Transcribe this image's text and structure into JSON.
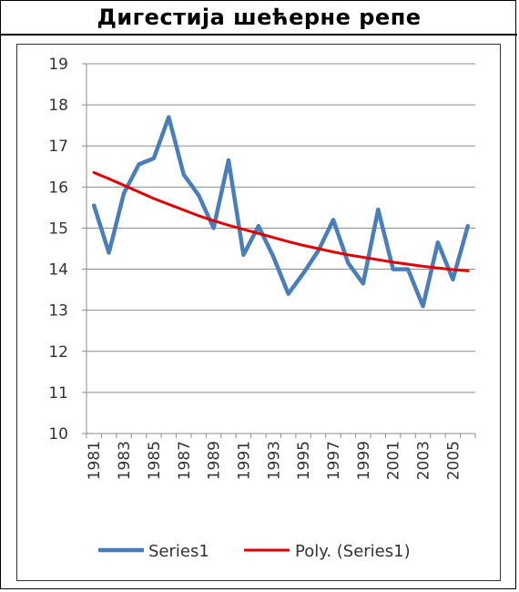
{
  "title": "Дигестија шећерне репе",
  "chart_data": {
    "type": "line",
    "ylim": [
      10,
      19
    ],
    "yticks": [
      10,
      11,
      12,
      13,
      14,
      15,
      16,
      17,
      18,
      19
    ],
    "x": [
      1981,
      1982,
      1983,
      1984,
      1985,
      1986,
      1987,
      1988,
      1989,
      1990,
      1991,
      1992,
      1993,
      1994,
      1995,
      1996,
      1997,
      1998,
      1999,
      2000,
      2001,
      2002,
      2003,
      2004,
      2005,
      2006
    ],
    "xtick_labels": [
      "1981",
      "1983",
      "1985",
      "1987",
      "1989",
      "1991",
      "1993",
      "1995",
      "1997",
      "1999",
      "2001",
      "2003",
      "2005"
    ],
    "grid": true,
    "legend_position": "bottom",
    "series": [
      {
        "name": "Series1",
        "color": "#4a7ebb",
        "values": [
          15.55,
          14.4,
          15.85,
          16.55,
          16.7,
          17.7,
          16.3,
          15.8,
          15.0,
          16.65,
          14.35,
          15.05,
          14.3,
          13.4,
          13.9,
          14.45,
          15.2,
          14.15,
          13.65,
          15.45,
          14.0,
          14.0,
          13.1,
          14.65,
          13.75,
          15.05
        ]
      },
      {
        "name": "Poly. (Series1)",
        "color": "#e00000",
        "values": [
          16.35,
          16.2,
          16.04,
          15.88,
          15.72,
          15.58,
          15.44,
          15.3,
          15.18,
          15.07,
          14.97,
          14.87,
          14.77,
          14.67,
          14.58,
          14.5,
          14.42,
          14.35,
          14.29,
          14.23,
          14.17,
          14.12,
          14.07,
          14.03,
          13.99,
          13.96
        ]
      }
    ]
  }
}
